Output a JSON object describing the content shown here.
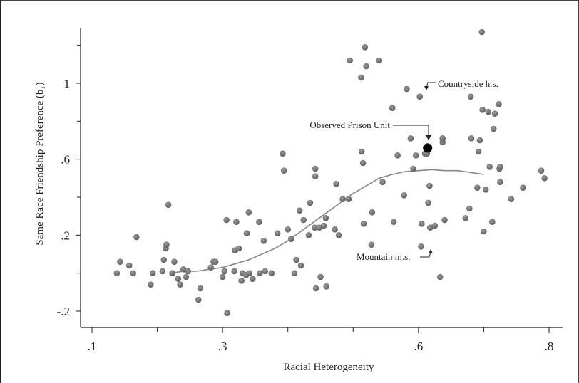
{
  "chart_data": {
    "type": "scatter",
    "xlabel": "Racial Heterogeneity",
    "ylabel": "Same Race Friendship Preference (b₁)",
    "xlim": [
      0.1,
      0.8
    ],
    "ylim": [
      -0.3,
      1.3
    ],
    "x_ticks": [
      {
        "value": 0.1,
        "label": ".1"
      },
      {
        "value": 0.3,
        "label": ".3"
      },
      {
        "value": 0.6,
        "label": ".6"
      },
      {
        "value": 0.8,
        "label": ".8"
      }
    ],
    "x_minor_ticks": [
      0.2,
      0.4,
      0.5,
      0.7
    ],
    "y_ticks": [
      {
        "value": -0.2,
        "label": "-.2"
      },
      {
        "value": 0.2,
        "label": ".2"
      },
      {
        "value": 0.6,
        "label": ".6"
      },
      {
        "value": 1.0,
        "label": "1"
      }
    ],
    "y_minor_ticks": [
      0.0,
      0.4,
      0.8,
      1.2
    ],
    "grid": false,
    "point_color": "#6e6e6e",
    "highlight_color": "#000000",
    "points": [
      [
        0.138,
        0.0
      ],
      [
        0.143,
        0.06
      ],
      [
        0.157,
        0.04
      ],
      [
        0.163,
        0.0
      ],
      [
        0.168,
        0.19
      ],
      [
        0.19,
        -0.06
      ],
      [
        0.193,
        0.0
      ],
      [
        0.208,
        0.01
      ],
      [
        0.21,
        0.07
      ],
      [
        0.213,
        0.13
      ],
      [
        0.214,
        0.15
      ],
      [
        0.217,
        0.36
      ],
      [
        0.223,
        0.0
      ],
      [
        0.226,
        0.06
      ],
      [
        0.232,
        -0.03
      ],
      [
        0.235,
        -0.06
      ],
      [
        0.24,
        0.02
      ],
      [
        0.244,
        -0.02
      ],
      [
        0.247,
        0.01
      ],
      [
        0.263,
        -0.14
      ],
      [
        0.266,
        -0.08
      ],
      [
        0.282,
        0.03
      ],
      [
        0.286,
        0.06
      ],
      [
        0.289,
        0.06
      ],
      [
        0.3,
        -0.02
      ],
      [
        0.303,
        0.01
      ],
      [
        0.306,
        0.28
      ],
      [
        0.307,
        -0.21
      ],
      [
        0.318,
        0.01
      ],
      [
        0.319,
        0.12
      ],
      [
        0.321,
        0.27
      ],
      [
        0.325,
        0.13
      ],
      [
        0.329,
        -0.04
      ],
      [
        0.331,
        0.0
      ],
      [
        0.336,
        -0.01
      ],
      [
        0.337,
        0.21
      ],
      [
        0.34,
        0.32
      ],
      [
        0.341,
        0.0
      ],
      [
        0.346,
        -0.03
      ],
      [
        0.356,
        0.27
      ],
      [
        0.357,
        0.0
      ],
      [
        0.363,
        0.17
      ],
      [
        0.365,
        0.01
      ],
      [
        0.375,
        0.0
      ],
      [
        0.384,
        0.21
      ],
      [
        0.392,
        0.63
      ],
      [
        0.394,
        0.54
      ],
      [
        0.4,
        0.23
      ],
      [
        0.405,
        0.18
      ],
      [
        0.41,
        0.0
      ],
      [
        0.413,
        0.07
      ],
      [
        0.418,
        0.33
      ],
      [
        0.42,
        0.04
      ],
      [
        0.424,
        0.28
      ],
      [
        0.432,
        0.2
      ],
      [
        0.434,
        0.37
      ],
      [
        0.441,
        0.24
      ],
      [
        0.442,
        0.51
      ],
      [
        0.442,
        0.55
      ],
      [
        0.443,
        -0.08
      ],
      [
        0.448,
        0.24
      ],
      [
        0.45,
        -0.02
      ],
      [
        0.455,
        0.25
      ],
      [
        0.458,
        0.29
      ],
      [
        0.459,
        -0.07
      ],
      [
        0.472,
        0.23
      ],
      [
        0.474,
        0.47
      ],
      [
        0.478,
        0.2
      ],
      [
        0.484,
        0.39
      ],
      [
        0.493,
        0.39
      ],
      [
        0.495,
        1.12
      ],
      [
        0.512,
        1.03
      ],
      [
        0.513,
        0.64
      ],
      [
        0.515,
        0.58
      ],
      [
        0.516,
        0.26
      ],
      [
        0.518,
        1.19
      ],
      [
        0.52,
        1.09
      ],
      [
        0.528,
        0.15
      ],
      [
        0.529,
        0.32
      ],
      [
        0.54,
        1.12
      ],
      [
        0.545,
        0.48
      ],
      [
        0.56,
        0.87
      ],
      [
        0.562,
        0.27
      ],
      [
        0.568,
        0.62
      ],
      [
        0.578,
        0.41
      ],
      [
        0.582,
        0.97
      ],
      [
        0.588,
        0.71
      ],
      [
        0.592,
        0.55
      ],
      [
        0.596,
        0.62
      ],
      [
        0.602,
        0.93
      ],
      [
        0.604,
        0.14
      ],
      [
        0.605,
        0.26
      ],
      [
        0.61,
        0.63
      ],
      [
        0.613,
        0.63
      ],
      [
        0.615,
        0.37
      ],
      [
        0.617,
        0.46
      ],
      [
        0.618,
        0.24
      ],
      [
        0.625,
        0.25
      ],
      [
        0.633,
        -0.02
      ],
      [
        0.637,
        0.69
      ],
      [
        0.637,
        0.71
      ],
      [
        0.64,
        0.28
      ],
      [
        0.672,
        0.29
      ],
      [
        0.678,
        0.34
      ],
      [
        0.68,
        0.93
      ],
      [
        0.681,
        0.71
      ],
      [
        0.69,
        0.45
      ],
      [
        0.692,
        0.64
      ],
      [
        0.694,
        0.7
      ],
      [
        0.698,
        0.86
      ],
      [
        0.7,
        0.22
      ],
      [
        0.703,
        0.44
      ],
      [
        0.707,
        0.85
      ],
      [
        0.709,
        0.56
      ],
      [
        0.713,
        0.27
      ],
      [
        0.715,
        0.76
      ],
      [
        0.717,
        0.84
      ],
      [
        0.723,
        0.89
      ],
      [
        0.724,
        0.55
      ],
      [
        0.725,
        0.56
      ],
      [
        0.725,
        0.48
      ],
      [
        0.742,
        0.39
      ],
      [
        0.76,
        0.45
      ],
      [
        0.788,
        0.54
      ],
      [
        0.793,
        0.5
      ],
      [
        0.697,
        1.27
      ]
    ],
    "highlight_point": {
      "x": 0.614,
      "y": 0.659,
      "label": "Observed Prison Unit"
    },
    "curve": {
      "x": [
        0.22,
        0.24,
        0.26,
        0.28,
        0.3,
        0.32,
        0.34,
        0.36,
        0.38,
        0.4,
        0.42,
        0.44,
        0.46,
        0.48,
        0.5,
        0.52,
        0.54,
        0.56,
        0.58,
        0.6,
        0.62,
        0.64,
        0.66,
        0.68,
        0.7
      ],
      "y": [
        0.0,
        0.01,
        0.01,
        0.02,
        0.03,
        0.05,
        0.07,
        0.1,
        0.13,
        0.17,
        0.22,
        0.27,
        0.32,
        0.37,
        0.42,
        0.46,
        0.5,
        0.52,
        0.535,
        0.54,
        0.545,
        0.54,
        0.54,
        0.53,
        0.52
      ],
      "color": "#888888"
    },
    "annotations": [
      {
        "text": "Countryside h.s.",
        "x": 0.612,
        "y": 0.95
      },
      {
        "text": "Mountain m.s.",
        "x": 0.604,
        "y": 0.13
      }
    ]
  }
}
